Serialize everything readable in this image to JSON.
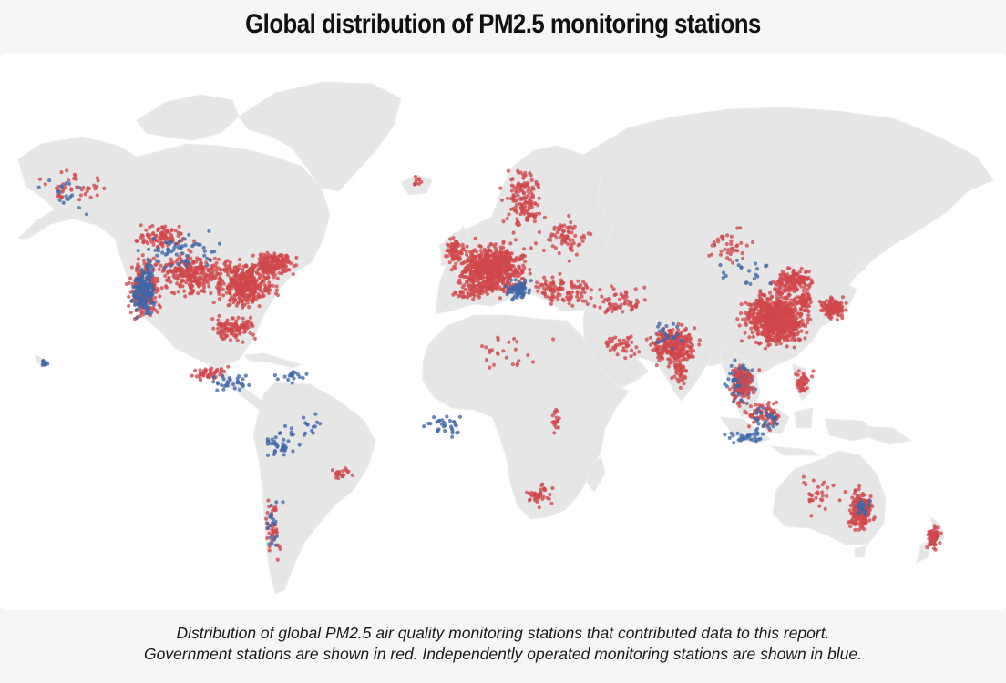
{
  "title": "Global distribution of PM2.5 monitoring stations",
  "caption": {
    "line1": "Distribution of global PM2.5 air quality monitoring stations that contributed data to this report.",
    "line2": "Government stations are shown in red. Independently operated monitoring stations are shown in blue."
  },
  "legend": {
    "government_color": "#d0484c",
    "independent_color": "#3f67a8"
  },
  "map": {
    "projection": "equirectangular-like world map",
    "land_color": "#e6e6e6",
    "ocean_color": "#ffffff",
    "station_clusters": [
      {
        "region": "Western United States",
        "type": "government",
        "density": "very high"
      },
      {
        "region": "Western United States",
        "type": "independent",
        "density": "very high"
      },
      {
        "region": "Eastern United States",
        "type": "government",
        "density": "very high"
      },
      {
        "region": "Europe",
        "type": "government",
        "density": "very high"
      },
      {
        "region": "Central Europe",
        "type": "independent",
        "density": "medium"
      },
      {
        "region": "China",
        "type": "government",
        "density": "very high"
      },
      {
        "region": "Japan",
        "type": "government",
        "density": "high"
      },
      {
        "region": "India",
        "type": "government",
        "density": "high"
      },
      {
        "region": "Southeast Asia",
        "type": "independent",
        "density": "high"
      },
      {
        "region": "South America",
        "type": "independent",
        "density": "medium"
      },
      {
        "region": "Africa",
        "type": "independent",
        "density": "low"
      },
      {
        "region": "South Africa",
        "type": "government",
        "density": "medium"
      },
      {
        "region": "Eastern Australia",
        "type": "government",
        "density": "high"
      },
      {
        "region": "New Zealand",
        "type": "government",
        "density": "medium"
      }
    ]
  }
}
